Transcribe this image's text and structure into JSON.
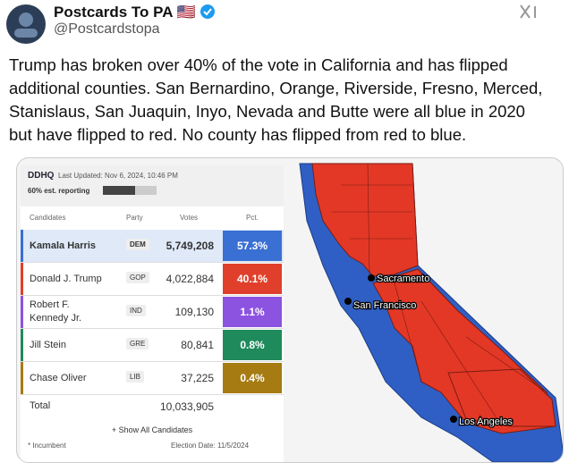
{
  "header": {
    "name": "Postcards To PA",
    "flag": "🇺🇸",
    "handle": "@Postcardstopa"
  },
  "text_lines": [
    "Trump has broken over 40% of the vote in California and has flipped",
    "additional counties. San Bernardino, Orange, Riverside, Fresno, Merced,",
    "Stanislaus, San Juaquin, Inyo, Nevada and Butte were all blue in 2020",
    "but have flipped to red. No county has flipped from red to blue."
  ],
  "results": {
    "logo": "DDHQ",
    "updated": "Last Updated: Nov 6, 2024, 10:46 PM",
    "reporting": {
      "label": "60% est. reporting",
      "value": 60
    },
    "columns": [
      "Candidates",
      "Party",
      "Votes",
      "Pct."
    ],
    "rows": [
      {
        "name": "Kamala Harris",
        "party": "DEM",
        "votes": "5,749,208",
        "pct": "57.3%",
        "color": "#3a6fd3"
      },
      {
        "name": "Donald J. Trump",
        "party": "GOP",
        "votes": "4,022,884",
        "pct": "40.1%",
        "color": "#e0402b"
      },
      {
        "name": "Robert F. Kennedy Jr.",
        "party": "IND",
        "votes": "109,130",
        "pct": "1.1%",
        "color": "#8c52e0"
      },
      {
        "name": "Jill Stein",
        "party": "GRE",
        "votes": "80,841",
        "pct": "0.8%",
        "color": "#1f8a5c"
      },
      {
        "name": "Chase Oliver",
        "party": "LIB",
        "votes": "37,225",
        "pct": "0.4%",
        "color": "#a57b12"
      }
    ],
    "total_label": "Total",
    "total_votes": "10,033,905",
    "show_all": "+ Show All Candidates",
    "incumbent": "* Incumbent",
    "election_date": "Election Date: 11/5/2024"
  },
  "map": {
    "cities": [
      "Sacramento",
      "San Francisco",
      "Los Angeles"
    ]
  }
}
